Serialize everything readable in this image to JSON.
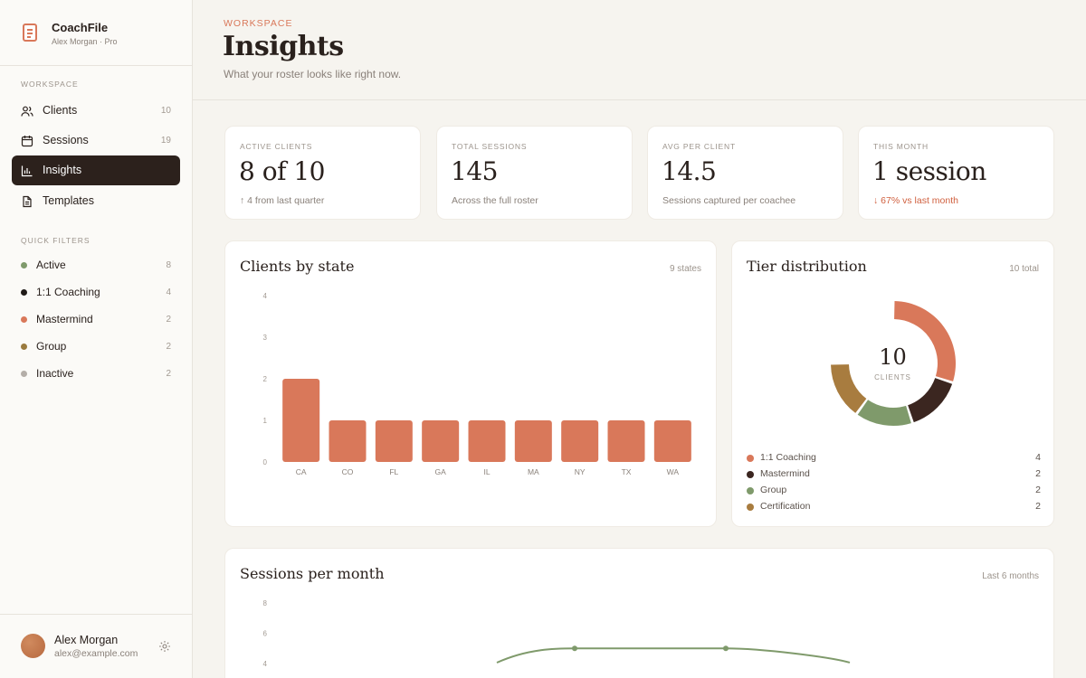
{
  "app": {
    "name": "CoachFile",
    "subtitle": "Alex Morgan · Pro"
  },
  "sidebar": {
    "workspace_label": "WORKSPACE",
    "nav": [
      {
        "label": "Clients",
        "count": "10",
        "icon": "users-icon"
      },
      {
        "label": "Sessions",
        "count": "19",
        "icon": "calendar-icon"
      },
      {
        "label": "Insights",
        "count": "",
        "icon": "bar-chart-icon",
        "active": true
      },
      {
        "label": "Templates",
        "count": "",
        "icon": "document-icon"
      }
    ],
    "filters_label": "QUICK FILTERS",
    "filters": [
      {
        "label": "Active",
        "count": "8",
        "color": "#7f9a6b"
      },
      {
        "label": "1:1 Coaching",
        "count": "4",
        "color": "#1f1a17"
      },
      {
        "label": "Mastermind",
        "count": "2",
        "color": "#d9785a"
      },
      {
        "label": "Group",
        "count": "2",
        "color": "#9a7a3e"
      },
      {
        "label": "Inactive",
        "count": "2",
        "color": "#b4aea8"
      }
    ],
    "user": {
      "name": "Alex Morgan",
      "email": "alex@example.com"
    }
  },
  "header": {
    "eyebrow": "WORKSPACE",
    "title": "Insights",
    "subtitle": "What your roster looks like right now."
  },
  "stats": [
    {
      "label": "ACTIVE CLIENTS",
      "value": "8 of 10",
      "note": "↑ 4 from last quarter",
      "trend": "up"
    },
    {
      "label": "TOTAL SESSIONS",
      "value": "145",
      "note": "Across the full roster",
      "trend": "neutral"
    },
    {
      "label": "AVG PER CLIENT",
      "value": "14.5",
      "note": "Sessions captured per coachee",
      "trend": "neutral"
    },
    {
      "label": "THIS MONTH",
      "value": "1 session",
      "note": "↓ 67% vs last month",
      "trend": "down"
    }
  ],
  "state_card": {
    "title": "Clients by state",
    "meta": "9 states"
  },
  "tier_card": {
    "title": "Tier distribution",
    "meta": "10 total",
    "center_value": "10",
    "center_label": "CLIENTS",
    "legend": [
      {
        "label": "1:1 Coaching",
        "value": "4",
        "color": "#d9785a"
      },
      {
        "label": "Mastermind",
        "value": "2",
        "color": "#3b2620"
      },
      {
        "label": "Group",
        "value": "2",
        "color": "#7f9a6b"
      },
      {
        "label": "Certification",
        "value": "2",
        "color": "#a87c3f"
      }
    ]
  },
  "sessions_card": {
    "title": "Sessions per month",
    "meta": "Last 6 months"
  },
  "colors": {
    "accent": "#d9785a",
    "dark": "#2c211c",
    "line": "#7f9a6b"
  },
  "chart_data": [
    {
      "type": "bar",
      "title": "Clients by state",
      "categories": [
        "CA",
        "CO",
        "FL",
        "GA",
        "IL",
        "MA",
        "NY",
        "TX",
        "WA"
      ],
      "values": [
        2,
        1,
        1,
        1,
        1,
        1,
        1,
        1,
        1
      ],
      "ylim": [
        0,
        4
      ],
      "yticks": [
        0,
        1,
        2,
        3,
        4
      ],
      "grid": false
    },
    {
      "type": "pie",
      "title": "Tier distribution",
      "categories": [
        "1:1 Coaching",
        "Mastermind",
        "Group",
        "Certification"
      ],
      "values": [
        4,
        2,
        2,
        2
      ]
    },
    {
      "type": "line",
      "title": "Sessions per month",
      "ylim": [
        0,
        8
      ],
      "yticks_visible": [
        8,
        6,
        4
      ],
      "values_visible": [
        4.3,
        5.0,
        5.0,
        5.0,
        4.3
      ],
      "grid": false
    }
  ]
}
